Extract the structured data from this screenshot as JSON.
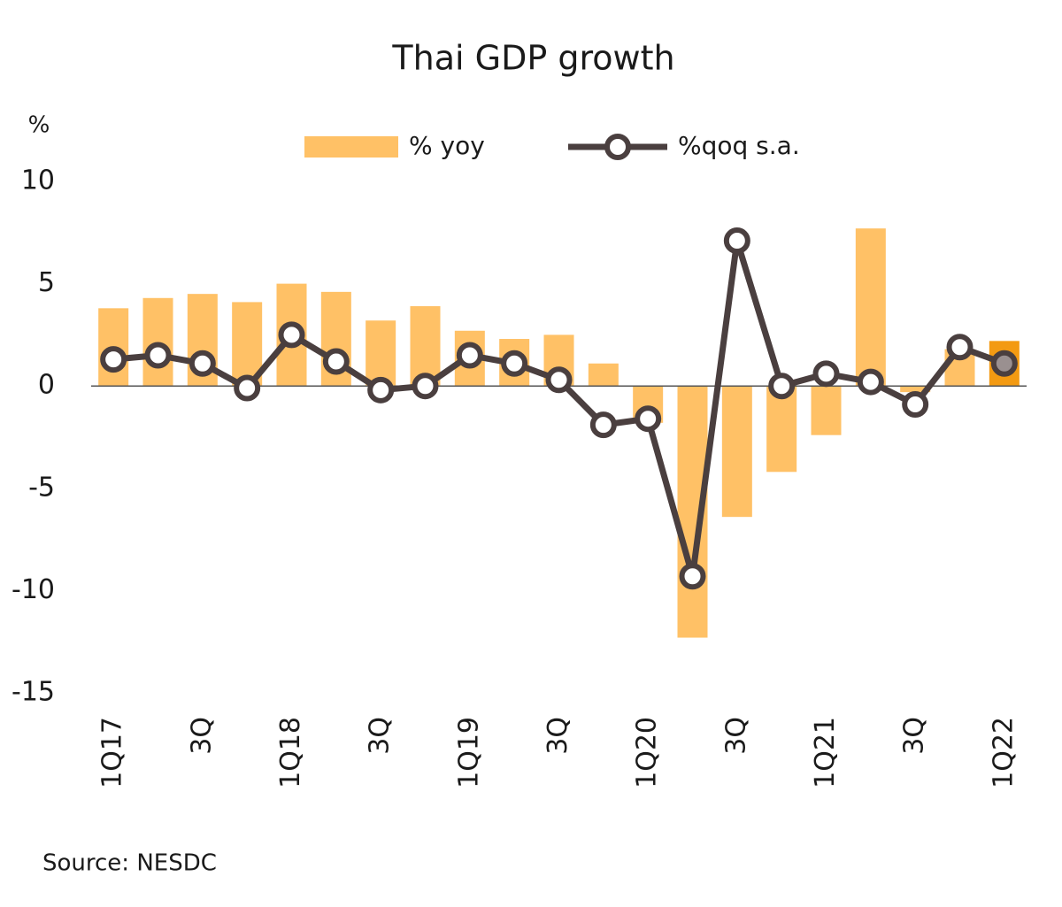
{
  "chart_data": {
    "type": "bar-line",
    "title": "Thai GDP growth",
    "y_unit": "%",
    "source": "Source: NESDC",
    "categories": [
      "1Q17",
      null,
      "3Q",
      null,
      "1Q18",
      null,
      "3Q",
      null,
      "1Q19",
      null,
      "3Q",
      null,
      "1Q20",
      null,
      "3Q",
      null,
      "1Q21",
      null,
      "3Q",
      null,
      "1Q22"
    ],
    "series": [
      {
        "name": "% yoy",
        "type": "bar",
        "color": "#ffc166",
        "values": [
          3.8,
          4.3,
          4.5,
          4.1,
          5.0,
          4.6,
          3.2,
          3.9,
          2.7,
          2.3,
          2.5,
          1.1,
          -1.8,
          -12.3,
          -6.4,
          -4.2,
          -2.4,
          7.7,
          -0.3,
          1.8,
          2.2
        ]
      },
      {
        "name": "%qoq s.a.",
        "type": "line",
        "color": "#4a3f3f",
        "values": [
          1.3,
          1.5,
          1.1,
          -0.1,
          2.5,
          1.2,
          -0.2,
          0.0,
          1.5,
          1.1,
          0.3,
          -1.9,
          -1.6,
          -9.3,
          7.1,
          0.0,
          0.6,
          0.2,
          -0.9,
          1.9,
          1.1
        ]
      }
    ],
    "highlight": {
      "index": 20,
      "bar_color": "#f39a12",
      "marker_fill": "#9a9090"
    },
    "ylim": [
      -15,
      10
    ],
    "yticks": [
      10,
      5,
      0,
      -5,
      -10,
      -15
    ],
    "grid": false
  }
}
